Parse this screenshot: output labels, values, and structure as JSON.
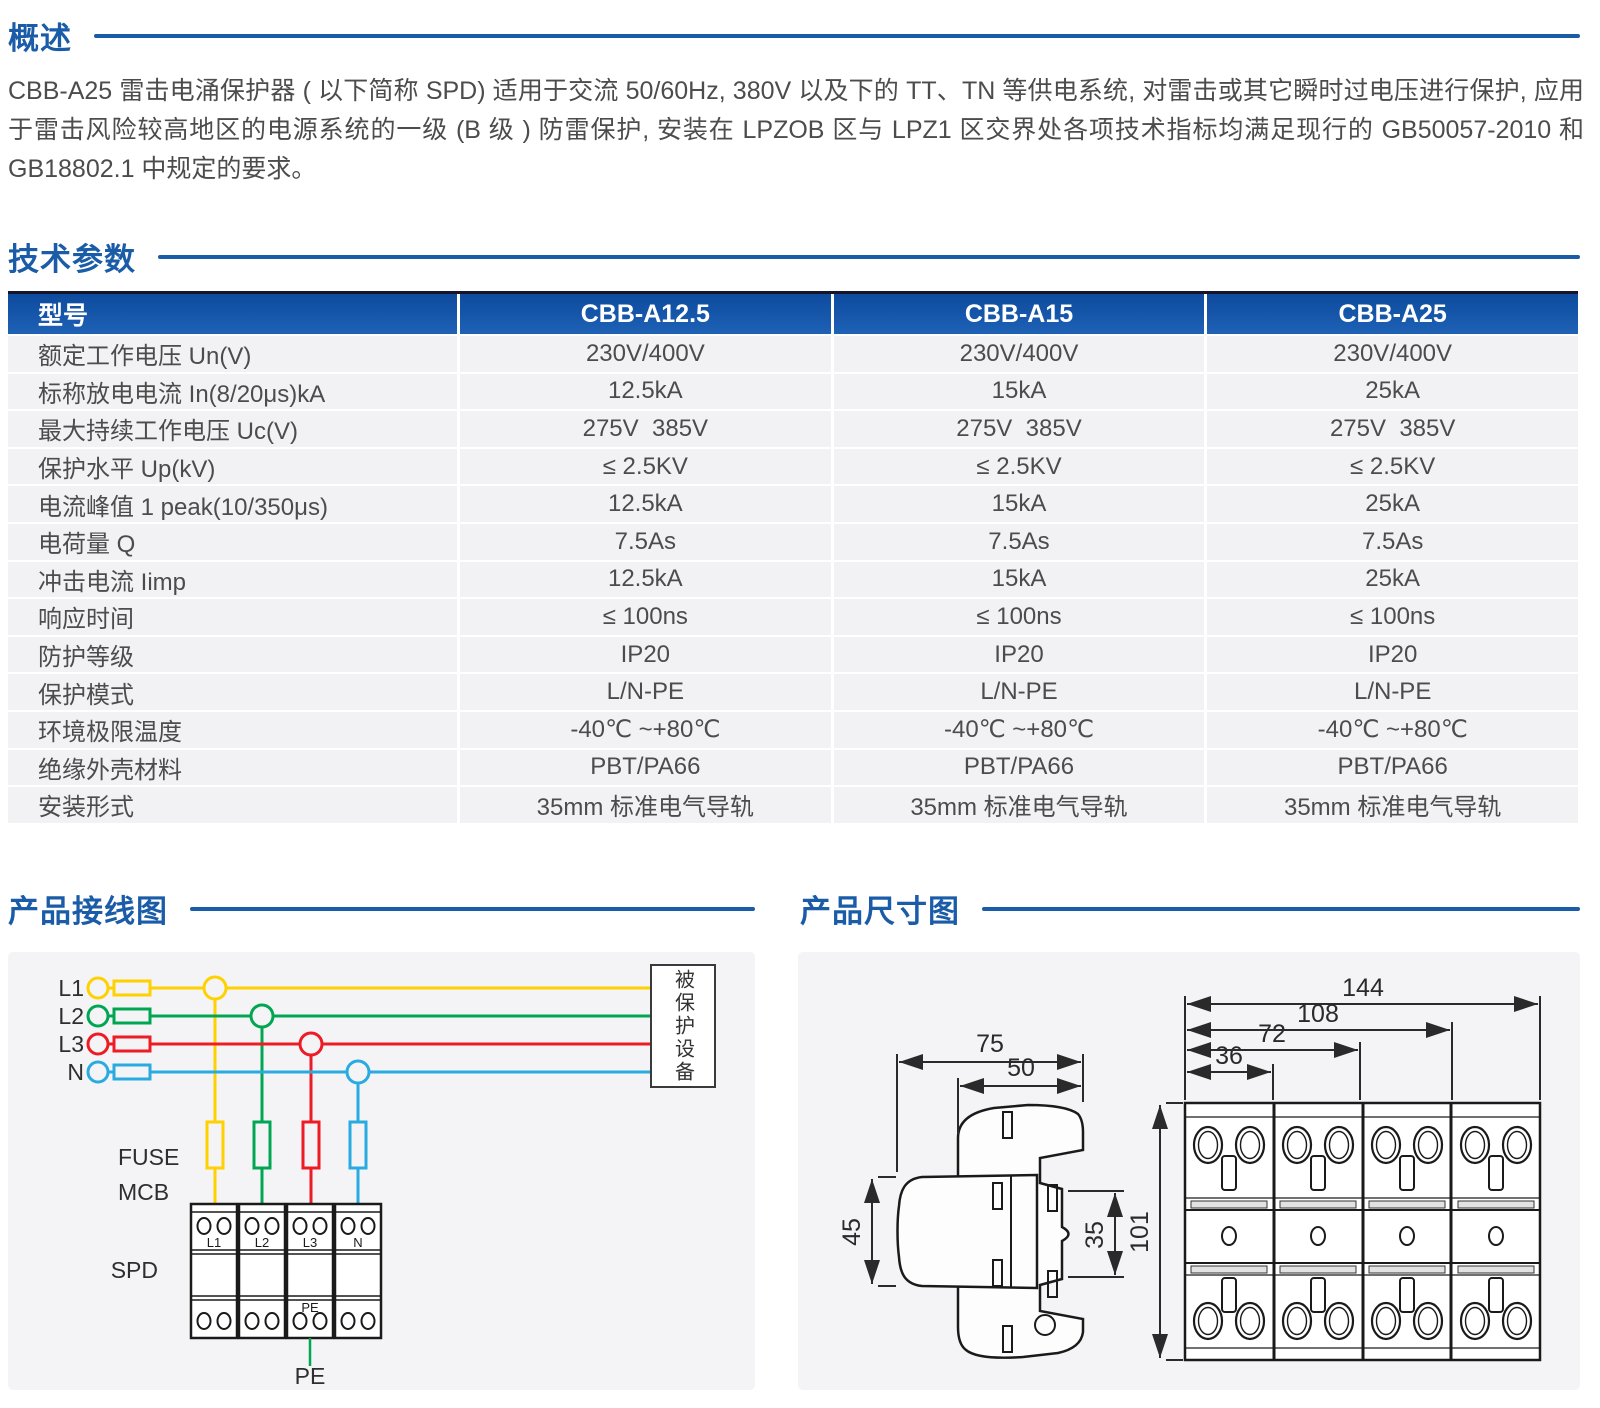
{
  "overview": {
    "title": "概述",
    "paragraph": "CBB-A25 雷击电涌保护器 ( 以下简称 SPD) 适用于交流 50/60Hz, 380V 以及下的 TT、TN 等供电系统, 对雷击或其它瞬时过电压进行保护, 应用于雷击风险较高地区的电源系统的一级 (B 级 ) 防雷保护, 安装在 LPZOB 区与 LPZ1 区交界处各项技术指标均满足现行的 GB50057-2010 和 GB18802.1 中规定的要求。"
  },
  "specs": {
    "title": "技术参数",
    "header": [
      "型号",
      "CBB-A12.5",
      "CBB-A15",
      "CBB-A25"
    ],
    "rows": [
      [
        "额定工作电压 Un(V)",
        "230V/400V",
        "230V/400V",
        "230V/400V"
      ],
      [
        "标称放电电流 In(8/20μs)kA",
        "12.5kA",
        "15kA",
        "25kA"
      ],
      [
        "最大持续工作电压 Uc(V)",
        "275V  385V",
        "275V  385V",
        "275V  385V"
      ],
      [
        "保护水平 Up(kV)",
        "≤ 2.5KV",
        "≤ 2.5KV",
        "≤ 2.5KV"
      ],
      [
        "电流峰值 1 peak(10/350μs)",
        "12.5kA",
        "15kA",
        "25kA"
      ],
      [
        "电荷量 Q",
        "7.5As",
        "7.5As",
        "7.5As"
      ],
      [
        "冲击电流 Iimp",
        "12.5kA",
        "15kA",
        "25kA"
      ],
      [
        "响应时间",
        "≤ 100ns",
        "≤ 100ns",
        "≤ 100ns"
      ],
      [
        "防护等级",
        "IP20",
        "IP20",
        "IP20"
      ],
      [
        "保护模式",
        "L/N-PE",
        "L/N-PE",
        "L/N-PE"
      ],
      [
        "环境极限温度",
        "-40℃ ~+80℃",
        "-40℃ ~+80℃",
        "-40℃ ~+80℃"
      ],
      [
        "绝缘外壳材料",
        "PBT/PA66",
        "PBT/PA66",
        "PBT/PA66"
      ],
      [
        "安装形式",
        "35mm 标准电气导轨",
        "35mm 标准电气导轨",
        "35mm 标准电气导轨"
      ]
    ]
  },
  "wiring": {
    "title": "产品接线图",
    "lines": [
      {
        "label": "L1",
        "color": "#ffd100"
      },
      {
        "label": "L2",
        "color": "#00a651"
      },
      {
        "label": "L3",
        "color": "#ed1c24"
      },
      {
        "label": "N",
        "color": "#29abe2"
      }
    ],
    "fuse_label": "FUSE",
    "mcb_label": "MCB",
    "spd_label": "SPD",
    "pe_label": "PE",
    "spd_terminals": [
      "L1",
      "L2",
      "L3",
      "N"
    ],
    "spd_pe_terminal": "PE",
    "protected_device": "被保护设备"
  },
  "dimensions": {
    "title": "产品尺寸图",
    "side": {
      "top_width": "75",
      "inner_width": "50",
      "left_height": "45",
      "rail_height": "35"
    },
    "front": {
      "total_width": "144",
      "width_3mod": "108",
      "width_2mod": "72",
      "width_1mod": "36",
      "height": "101"
    }
  },
  "colors": {
    "accent_blue": "#1a5ca8",
    "table_header_blue": "#12529f",
    "line_l1_yellow": "#ffd100",
    "line_l2_green": "#00a651",
    "line_l3_red": "#ed1c24",
    "line_n_blue": "#29abe2",
    "panel_gray": "#f4f4f6"
  }
}
